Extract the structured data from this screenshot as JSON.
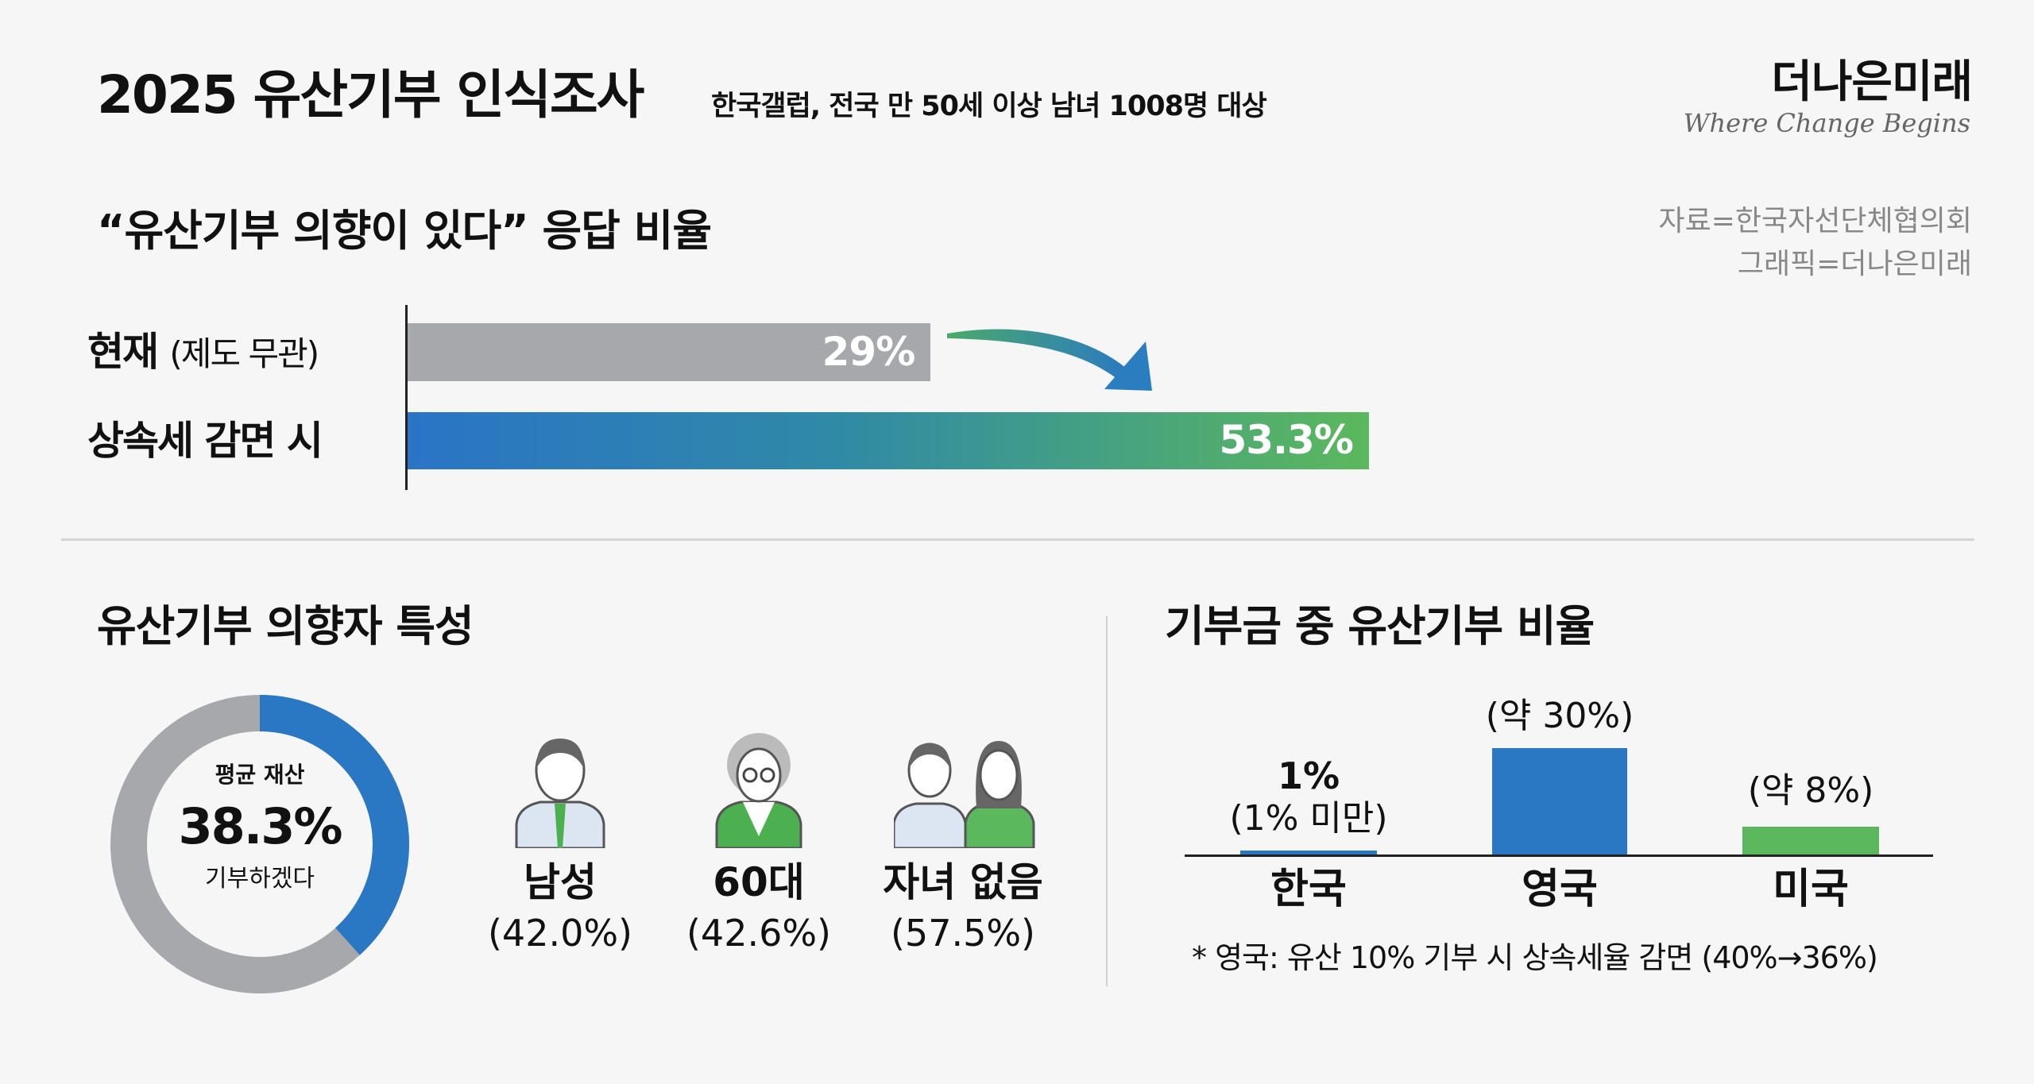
{
  "header": {
    "title": "2025 유산기부 인식조사",
    "subtitle": "한국갤럽, 전국 만 50세 이상 남녀 1008명 대상",
    "logo": "더나은미래",
    "tagline": "Where Change Begins",
    "source": "자료=한국자선단체협의회",
    "graphic": "그래픽=더나은미래"
  },
  "section1": {
    "title": "“유산기부 의향이 있다” 응답 비율",
    "rows": [
      {
        "label": "현재",
        "sub": "(제도 무관)"
      },
      {
        "label": "상속세 감면 시",
        "sub": ""
      }
    ]
  },
  "section2": {
    "title": "유산기부 의향자 특성",
    "donut_top": "평균 재산",
    "donut_value": "38.3%",
    "donut_bottom": "기부하겠다",
    "traits": [
      {
        "label": "남성",
        "value": "(42.0%)",
        "icon": "man-icon"
      },
      {
        "label": "60대",
        "value": "(42.6%)",
        "icon": "elderly-woman-icon"
      },
      {
        "label": "자녀 없음",
        "value": "(57.5%)",
        "icon": "couple-icon"
      }
    ]
  },
  "section3": {
    "title": "기부금 중 유산기부 비율",
    "footnote": "* 영국: 유산 10% 기부 시 상속세율 감면 (40%→36%)"
  },
  "colors": {
    "gray": "#a6a8ab",
    "blue": "#2a78c4",
    "green": "#5cb85c",
    "text": "#111111",
    "muted": "#888888"
  },
  "chart_data": [
    {
      "type": "bar",
      "orientation": "horizontal",
      "title": "“유산기부 의향이 있다” 응답 비율",
      "categories": [
        "현재 (제도 무관)",
        "상속세 감면 시"
      ],
      "values": [
        29,
        53.3
      ],
      "value_labels": [
        "29%",
        "53.3%"
      ],
      "xlim": [
        0,
        100
      ]
    },
    {
      "type": "pie",
      "title": "평균 재산 기부하겠다",
      "values": [
        38.3,
        61.7
      ],
      "value_label": "38.3%"
    },
    {
      "type": "bar",
      "title": "기부금 중 유산기부 비율",
      "categories": [
        "한국",
        "영국",
        "미국"
      ],
      "values": [
        1,
        30,
        8
      ],
      "value_labels": [
        [
          "1%",
          "(1% 미만)"
        ],
        [
          "(약 30%)"
        ],
        [
          "(약 8%)"
        ]
      ],
      "colors": [
        "#2a78c4",
        "#2a78c4",
        "#5cb85c"
      ],
      "ylim": [
        0,
        30
      ]
    }
  ]
}
